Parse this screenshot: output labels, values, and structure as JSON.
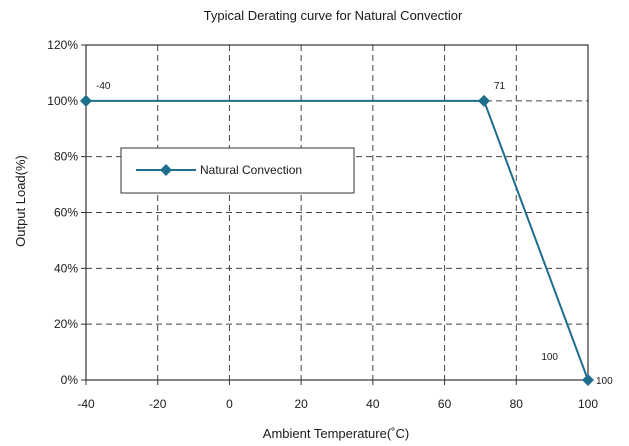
{
  "chart_data": {
    "type": "line",
    "title": "Typical Derating curve for Natural Convectior",
    "xlabel": "Ambient Temperature(˚C)",
    "ylabel": "Output Load(%)",
    "xlim": [
      -40,
      100
    ],
    "ylim": [
      0,
      120
    ],
    "x_ticks": [
      -40,
      -20,
      0,
      20,
      40,
      60,
      80,
      100
    ],
    "y_ticks": [
      0,
      20,
      40,
      60,
      80,
      100,
      120
    ],
    "x_tick_labels": [
      "-40",
      "-20",
      "0",
      "20",
      "40",
      "60",
      "80",
      "100"
    ],
    "y_tick_labels": [
      "0%",
      "20%",
      "40%",
      "60%",
      "80%",
      "100%",
      "120%"
    ],
    "grid": true,
    "legend_position": "upper-left",
    "series": [
      {
        "name": "Natural Convection",
        "color": "#1f6e8c",
        "marker": "diamond",
        "x": [
          -40,
          71,
          100
        ],
        "y": [
          100,
          100,
          0
        ]
      }
    ],
    "annotations": [
      {
        "text": "-40",
        "x": -40,
        "y": 100,
        "anchor": "above-right"
      },
      {
        "text": "71",
        "x": 71,
        "y": 100,
        "anchor": "above-right"
      },
      {
        "text": "100",
        "x": 100,
        "y": 0,
        "anchor": "above-left"
      },
      {
        "text": "100",
        "x": 100,
        "y": 0,
        "anchor": "right"
      }
    ]
  }
}
